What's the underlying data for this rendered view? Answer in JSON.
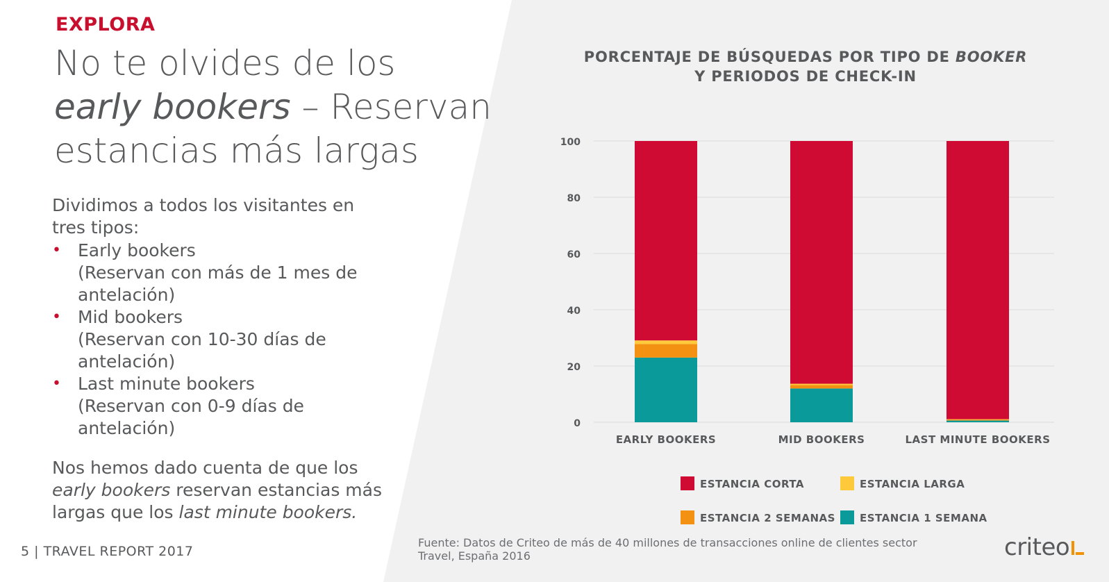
{
  "page": {
    "section_label": "EXPLORA",
    "headline_part1": "No te olvides de los",
    "headline_italic": "early bookers",
    "headline_part2": " – Reservan estancias más largas",
    "intro": "Dividimos a todos los visitantes en tres tipos:",
    "bullets": [
      {
        "name": "Early bookers",
        "detail": "(Reservan con más de 1 mes de antelación)"
      },
      {
        "name": "Mid bookers",
        "detail": "(Reservan con 10-30 días de antelación)"
      },
      {
        "name": "Last minute bookers",
        "detail": "(Reservan con 0-9 días de antelación)"
      }
    ],
    "bullet_marker": "•",
    "conclusion_part1": "Nos hemos dado cuenta de que los ",
    "conclusion_italic1": "early bookers",
    "conclusion_part2": " reservan estancias más largas que los ",
    "conclusion_italic2": "last minute bookers.",
    "footer": "5  |  TRAVEL REPORT 2017",
    "source": "Fuente: Datos de Criteo de más de 40 millones de transacciones online de clientes sector Travel, España 2016",
    "logo": "criteo"
  },
  "colors": {
    "brand_red": "#c8102e",
    "text_gray": "#58595b",
    "panel_gray": "#f1f1f2",
    "corta": "#cf0a33",
    "larga": "#ffc93c",
    "dos_semanas": "#f39112",
    "una_semana": "#0a9a9a",
    "logo_accent": "#f39200"
  },
  "chart_data": {
    "type": "bar",
    "stacked": true,
    "title_line1_part1": "PORCENTAJE DE BÚSQUEDAS POR TIPO DE ",
    "title_line1_italic": "BOOKER",
    "title_line2": "Y PERIODOS DE CHECK-IN",
    "categories": [
      "EARLY BOOKERS",
      "MID BOOKERS",
      "LAST MINUTE BOOKERS"
    ],
    "series": [
      {
        "name": "ESTANCIA 1 SEMANA",
        "values": [
          23,
          12,
          0.6
        ]
      },
      {
        "name": "ESTANCIA 2 SEMANAS",
        "values": [
          4.8,
          1.2,
          0.3
        ]
      },
      {
        "name": "ESTANCIA LARGA",
        "values": [
          1.3,
          0.5,
          0.2
        ]
      },
      {
        "name": "ESTANCIA CORTA",
        "values": [
          70.9,
          86.3,
          98.9
        ]
      }
    ],
    "legend_order": [
      "ESTANCIA CORTA",
      "ESTANCIA LARGA",
      "ESTANCIA 2 SEMANAS",
      "ESTANCIA 1 SEMANA"
    ],
    "ylim": [
      0,
      100
    ],
    "yticks": [
      0,
      20,
      40,
      60,
      80,
      100
    ],
    "grid": true,
    "legend_position": "bottom"
  }
}
